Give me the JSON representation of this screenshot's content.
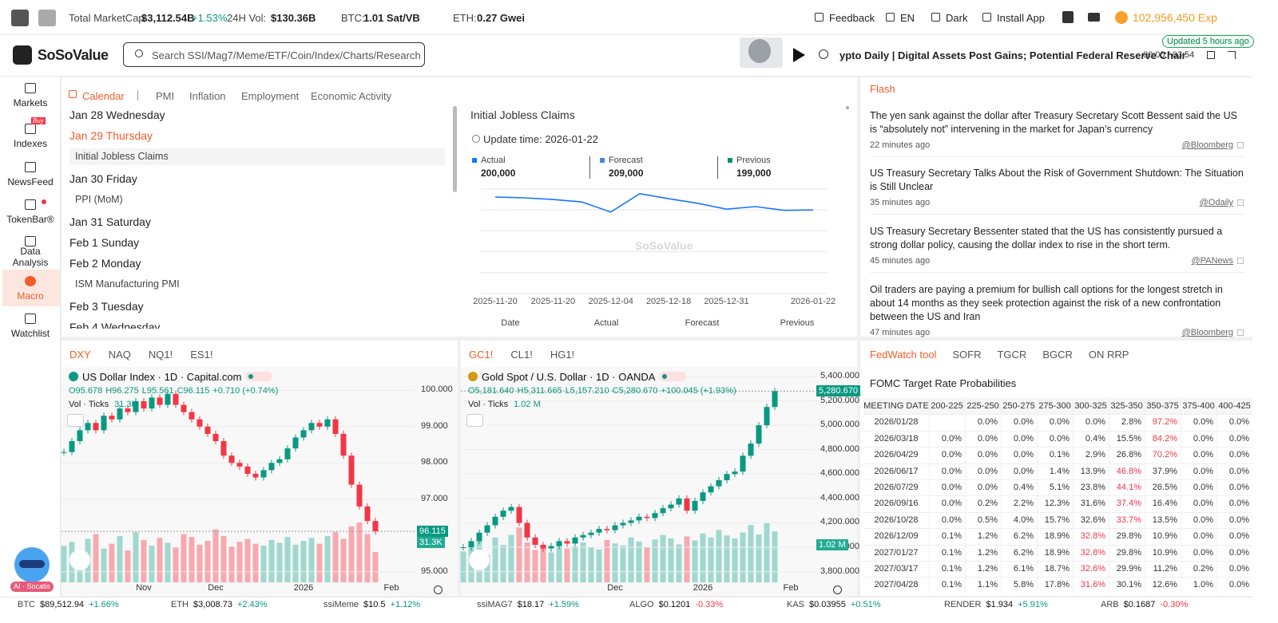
{
  "topbar": {
    "marketcap_label": "Total MarketCap:",
    "marketcap": "$3,112.54B",
    "marketcap_change": "+1.53%",
    "vol_label": "24H Vol:",
    "vol": "$130.36B",
    "btc_label": "BTC:",
    "btc": "1.01 Sat/VB",
    "eth_label": "ETH:",
    "eth": "0.27 Gwei",
    "links": [
      "Feedback",
      "EN",
      "Dark",
      "Install App"
    ],
    "exp": "102,956,450 Exp"
  },
  "header": {
    "logo": "SoSoValue",
    "search_placeholder": "Search SSI/Mag7/Meme/ETF/Coin/Index/Charts/Research",
    "podcast_title": "ypto Daily | Digital Assets Post Gains; Potential Federal Reserve Chair",
    "podcast_time": "00:00 / 03:54",
    "updated": "Updated 5 hours ago"
  },
  "sidebar": {
    "items": [
      "Markets",
      "Indexes",
      "NewsFeed",
      "TokenBar®",
      "Data Analysis",
      "Macro",
      "Watchlist"
    ],
    "badge": "Buy",
    "assistant": "AI · Socatis"
  },
  "calendar": {
    "tabs": [
      "Calendar",
      "PMI",
      "Inflation",
      "Employment",
      "Economic Activity"
    ],
    "days": [
      {
        "date": "Jan 28 Wednesday"
      },
      {
        "date": "Jan 29 Thursday",
        "events": [
          "Initial Jobless Claims"
        ]
      },
      {
        "date": "Jan 30 Friday",
        "events": [
          "PPI (MoM)"
        ]
      },
      {
        "date": "Jan 31 Saturday"
      },
      {
        "date": "Feb 1 Sunday"
      },
      {
        "date": "Feb 2 Monday",
        "events": [
          "ISM Manufacturing PMI"
        ]
      },
      {
        "date": "Feb 3 Tuesday"
      },
      {
        "date": "Feb 4 Wednesday"
      }
    ]
  },
  "indicator": {
    "title": "Initial Jobless Claims",
    "update": "Update time: 2026-01-22",
    "legend": [
      {
        "name": "Actual",
        "value": "200,000",
        "color": "#1677ff"
      },
      {
        "name": "Forecast",
        "value": "209,000",
        "color": "#4a86d8"
      },
      {
        "name": "Previous",
        "value": "199,000",
        "color": "#0f8f6f"
      }
    ],
    "chart": {
      "type": "line",
      "color": "#1677ff",
      "categories": [
        "2025-11-20",
        null,
        "2025-11-20",
        null,
        "2025-12-04",
        null,
        "2025-12-18",
        null,
        "2025-12-31",
        null,
        null,
        "2026-01-22"
      ],
      "values": [
        231000,
        229000,
        225000,
        219000,
        195000,
        239000,
        227000,
        216000,
        202000,
        208000,
        199000,
        200000
      ],
      "ylim": [
        0,
        250000
      ]
    },
    "columns": [
      "Date",
      "Actual",
      "Forecast",
      "Previous"
    ],
    "watermark": "SoSoValue"
  },
  "flash": {
    "title": "Flash",
    "items": [
      {
        "text": "The yen sank against the dollar after Treasury Secretary Scott Bessent said the US is “absolutely not” intervening in the market for Japan’s currency",
        "time": "22 minutes ago",
        "source": "@Bloomberg"
      },
      {
        "text": "US Treasury Secretary Talks About the Risk of Government Shutdown: The Situation is Still Unclear",
        "time": "35 minutes ago",
        "source": "@Odaily"
      },
      {
        "text": "US Treasury Secretary Bessenter stated that the US has consistently pursued a strong dollar policy, causing the dollar index to rise in the short term.",
        "time": "45 minutes ago",
        "source": "@PANews"
      },
      {
        "text": "Oil traders are paying a premium for bullish call options for the longest stretch in about 14 months as they seek protection against the risk of a new confrontation between the US and Iran",
        "time": "47 minutes ago",
        "source": "@Bloomberg"
      }
    ]
  },
  "markets": [
    {
      "tabs": [
        "DXY",
        "NAQ",
        "NQ1!",
        "ES1!"
      ],
      "title": "US Dollar Index · 1D · Capital.com",
      "ohlc": [
        "O95.678",
        "H96.275",
        "L95.561",
        "C96.115"
      ],
      "change": "+0.710 (+0.74%)",
      "vol_label": "Vol · Ticks",
      "vol_value": "31.3K",
      "chart": {
        "type": "candlestick",
        "up_color": "#089981",
        "down_color": "#f23645",
        "categories": [
          null,
          null,
          null,
          null,
          null,
          null,
          null,
          null,
          null,
          null,
          "Nov",
          null,
          null,
          null,
          null,
          null,
          null,
          null,
          null,
          "Dec",
          null,
          null,
          null,
          null,
          null,
          null,
          null,
          null,
          null,
          null,
          "2026",
          null,
          null,
          null,
          null,
          null,
          null,
          null,
          null,
          null,
          null,
          "Feb",
          null
        ],
        "closes": [
          98.3,
          98.6,
          98.9,
          99.1,
          98.9,
          99.3,
          99.2,
          99.5,
          99.4,
          99.7,
          99.5,
          99.8,
          99.6,
          99.9,
          99.6,
          99.4,
          99.2,
          99.0,
          98.8,
          98.6,
          98.2,
          98.0,
          97.9,
          97.7,
          97.6,
          97.8,
          98.0,
          98.1,
          98.4,
          98.7,
          98.9,
          99.1,
          99.0,
          99.2,
          98.8,
          98.2,
          97.4,
          96.8,
          96.4,
          96.115,
          null,
          null,
          null
        ],
        "volumes": [
          38,
          42,
          30,
          45,
          50,
          35,
          40,
          48,
          33,
          52,
          44,
          38,
          46,
          41,
          36,
          50,
          47,
          39,
          43,
          55,
          48,
          37,
          42,
          45,
          40,
          38,
          44,
          41,
          47,
          39,
          43,
          46,
          40,
          48,
          52,
          45,
          58,
          62,
          50,
          31.3,
          null,
          null,
          null
        ],
        "ylim": [
          94.6,
          100.6
        ],
        "yticks": [
          {
            "value": 95,
            "label": "95.000"
          },
          {
            "value": 97,
            "label": "97.000"
          },
          {
            "value": 98,
            "label": "98.000"
          },
          {
            "value": 99,
            "label": "99.000"
          },
          {
            "value": 100,
            "label": "100.000"
          }
        ],
        "last_label": "96.115",
        "last_vol_label": "31.3K"
      }
    },
    {
      "tabs": [
        "GC1!",
        "CL1!",
        "HG1!"
      ],
      "title": "Gold Spot / U.S. Dollar · 1D · OANDA",
      "ohlc": [
        "O5,181.640",
        "H5,311.665",
        "L5,157.210",
        "C5,280.670"
      ],
      "change": "+100.045 (+1.93%)",
      "vol_label": "Vol · Ticks",
      "vol_value": "1.02 M",
      "chart": {
        "type": "candlestick",
        "up_color": "#089981",
        "down_color": "#f23645",
        "categories": [
          null,
          null,
          null,
          null,
          null,
          null,
          null,
          null,
          null,
          null,
          null,
          null,
          null,
          null,
          null,
          null,
          null,
          null,
          null,
          "Dec",
          null,
          null,
          null,
          null,
          null,
          null,
          null,
          null,
          null,
          null,
          "2026",
          null,
          null,
          null,
          null,
          null,
          null,
          null,
          null,
          null,
          null,
          "Feb",
          null
        ],
        "closes": [
          4000,
          4050,
          4120,
          4180,
          4250,
          4300,
          4330,
          4200,
          4080,
          4020,
          3990,
          4010,
          4050,
          4030,
          4080,
          4100,
          4120,
          4150,
          4140,
          4180,
          4200,
          4220,
          4250,
          4240,
          4280,
          4320,
          4350,
          4400,
          4300,
          4380,
          4450,
          4500,
          4550,
          4600,
          4620,
          4750,
          4850,
          5000,
          5150,
          5280.67,
          null,
          null,
          null
        ],
        "volumes": [
          0.62,
          0.7,
          0.85,
          0.55,
          0.9,
          0.75,
          0.95,
          1.1,
          0.8,
          0.65,
          0.7,
          0.6,
          0.75,
          0.68,
          0.72,
          0.8,
          0.7,
          0.66,
          0.85,
          0.78,
          0.74,
          0.9,
          0.82,
          0.7,
          0.86,
          0.95,
          0.88,
          0.76,
          0.92,
          0.84,
          0.98,
          0.9,
          1.05,
          0.94,
          0.88,
          1.0,
          1.15,
          0.96,
          1.2,
          1.02,
          null,
          null,
          null
        ],
        "ylim": [
          3680,
          5465
        ],
        "yticks": [
          {
            "value": 3800,
            "label": "3,800.000"
          },
          {
            "value": 4000,
            "label": "4,000.000"
          },
          {
            "value": 4200,
            "label": "4,200.000"
          },
          {
            "value": 4400,
            "label": "4,400.000"
          },
          {
            "value": 4600,
            "label": "4,600.000"
          },
          {
            "value": 4800,
            "label": "4,800.000"
          },
          {
            "value": 5000,
            "label": "5,000.000"
          },
          {
            "value": 5200,
            "label": "5,200.000"
          },
          {
            "value": 5400,
            "label": "5,400.000"
          }
        ],
        "last_label": "5,280.670",
        "last_vol_label": "1.02 M"
      }
    }
  ],
  "fedwatch": {
    "tabs": [
      "FedWatch tool",
      "SOFR",
      "TGCR",
      "BGCR",
      "ON RRP"
    ],
    "title": "FOMC Target Rate Probabilities",
    "header": [
      "MEETING DATE",
      "200-225",
      "225-250",
      "250-275",
      "275-300",
      "300-325",
      "325-350",
      "350-375",
      "375-400",
      "400-425"
    ],
    "rows": [
      [
        "2026/01/28",
        null,
        "0.0%",
        "0.0%",
        "0.0%",
        "0.0%",
        "2.8%",
        "97.2%",
        "0.0%",
        "0.0%"
      ],
      [
        "2026/03/18",
        "0.0%",
        "0.0%",
        "0.0%",
        "0.0%",
        "0.4%",
        "15.5%",
        "84.2%",
        "0.0%",
        "0.0%"
      ],
      [
        "2026/04/29",
        "0.0%",
        "0.0%",
        "0.0%",
        "0.1%",
        "2.9%",
        "26.8%",
        "70.2%",
        "0.0%",
        "0.0%"
      ],
      [
        "2026/06/17",
        "0.0%",
        "0.0%",
        "0.0%",
        "1.4%",
        "13.9%",
        "46.8%",
        "37.9%",
        "0.0%",
        "0.0%"
      ],
      [
        "2026/07/29",
        "0.0%",
        "0.0%",
        "0.4%",
        "5.1%",
        "23.8%",
        "44.1%",
        "26.5%",
        "0.0%",
        "0.0%"
      ],
      [
        "2026/09/16",
        "0.0%",
        "0.2%",
        "2.2%",
        "12.3%",
        "31.6%",
        "37.4%",
        "16.4%",
        "0.0%",
        "0.0%"
      ],
      [
        "2026/10/28",
        "0.0%",
        "0.5%",
        "4.0%",
        "15.7%",
        "32.6%",
        "33.7%",
        "13.5%",
        "0.0%",
        "0.0%"
      ],
      [
        "2026/12/09",
        "0.1%",
        "1.2%",
        "6.2%",
        "18.9%",
        "32.8%",
        "29.8%",
        "10.9%",
        "0.0%",
        "0.0%"
      ],
      [
        "2027/01/27",
        "0.1%",
        "1.2%",
        "6.2%",
        "18.9%",
        "32.8%",
        "29.8%",
        "10.9%",
        "0.0%",
        "0.0%"
      ],
      [
        "2027/03/17",
        "0.1%",
        "1.2%",
        "6.1%",
        "18.7%",
        "32.6%",
        "29.9%",
        "11.2%",
        "0.2%",
        "0.0%"
      ],
      [
        "2027/04/28",
        "0.1%",
        "1.1%",
        "5.8%",
        "17.8%",
        "31.6%",
        "30.1%",
        "12.6%",
        "1.0%",
        "0.0%"
      ]
    ],
    "highlight_color": "#f23645"
  },
  "ticker": [
    {
      "symbol": "BTC",
      "price": "$89,512.94",
      "change": "+1.66%"
    },
    {
      "symbol": "ETH",
      "price": "$3,008.73",
      "change": "+2.43%"
    },
    {
      "symbol": "ssiMeme",
      "price": "$10.5",
      "change": "+1.12%"
    },
    {
      "symbol": "ssiMAG7",
      "price": "$18.17",
      "change": "+1.59%"
    },
    {
      "symbol": "ALGO",
      "price": "$0.1201",
      "change": "-0.33%"
    },
    {
      "symbol": "KAS",
      "price": "$0.03955",
      "change": "+0.51%"
    },
    {
      "symbol": "RENDER",
      "price": "$1.934",
      "change": "+5.91%"
    },
    {
      "symbol": "ARB",
      "price": "$0.1687",
      "change": "-0.30%"
    }
  ]
}
